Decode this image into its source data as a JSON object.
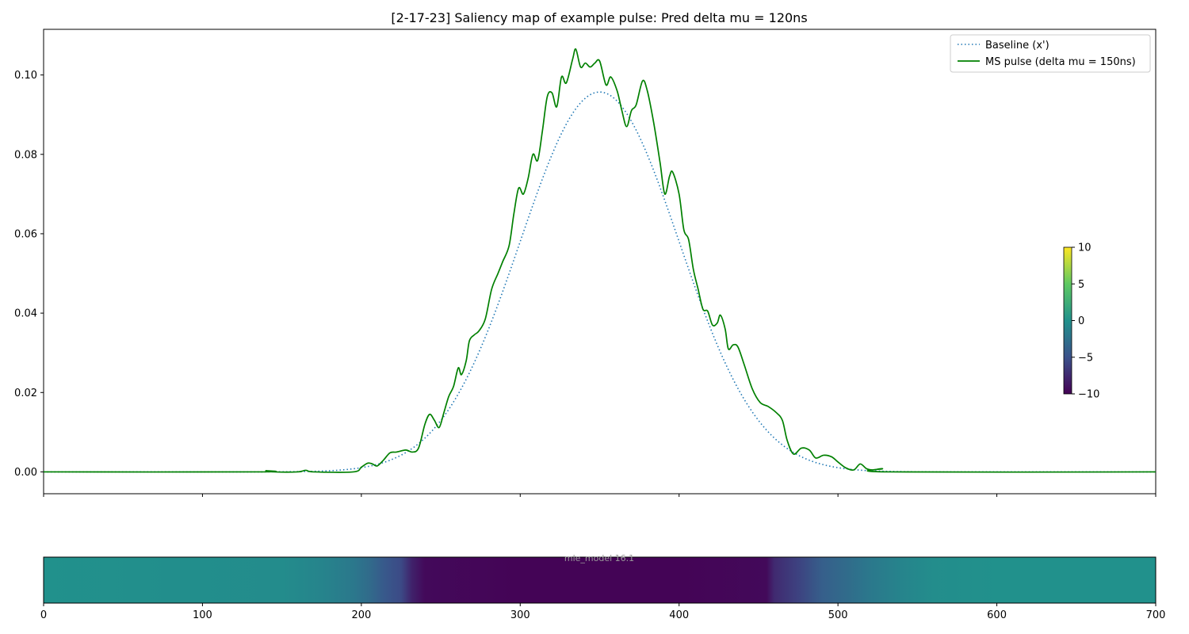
{
  "chart_data": [
    {
      "type": "line",
      "title": "[2-17-23] Saliency map of example pulse: Pred delta mu = 120ns",
      "xlim": [
        0,
        700
      ],
      "ylim": [
        -0.0055,
        0.1115
      ],
      "yticks": [
        0.0,
        0.02,
        0.04,
        0.06,
        0.08,
        0.1
      ],
      "ytick_labels": [
        "0.00",
        "0.02",
        "0.04",
        "0.06",
        "0.08",
        "0.10"
      ],
      "xticks": [
        0,
        100,
        200,
        300,
        400,
        500,
        600,
        700
      ],
      "legend_location": "top-right",
      "series": [
        {
          "name": "Baseline (x')",
          "style": "dotted",
          "color": "#1f77b4",
          "gaussian": {
            "amplitude": 0.0957,
            "center": 350,
            "sigma": 50,
            "x_range": [
              0,
              700
            ]
          }
        },
        {
          "name": "MS pulse (delta mu = 150ns)",
          "style": "solid",
          "color": "#008000",
          "points": [
            [
              0,
              0.0
            ],
            [
              135,
              0.0
            ],
            [
              140,
              0.0003
            ],
            [
              145,
              0.0
            ],
            [
              160,
              0.0
            ],
            [
              165,
              0.0004
            ],
            [
              170,
              0.0
            ],
            [
              195,
              0.0
            ],
            [
              200,
              0.0012
            ],
            [
              204,
              0.0022
            ],
            [
              207,
              0.002
            ],
            [
              210,
              0.0015
            ],
            [
              214,
              0.003
            ],
            [
              218,
              0.0048
            ],
            [
              222,
              0.005
            ],
            [
              228,
              0.0055
            ],
            [
              232,
              0.005
            ],
            [
              236,
              0.006
            ],
            [
              240,
              0.012
            ],
            [
              243,
              0.0145
            ],
            [
              246,
              0.013
            ],
            [
              249,
              0.0112
            ],
            [
              252,
              0.015
            ],
            [
              255,
              0.019
            ],
            [
              258,
              0.0215
            ],
            [
              261,
              0.0262
            ],
            [
              263,
              0.0245
            ],
            [
              266,
              0.028
            ],
            [
              268,
              0.033
            ],
            [
              271,
              0.0345
            ],
            [
              274,
              0.0355
            ],
            [
              278,
              0.0385
            ],
            [
              282,
              0.046
            ],
            [
              286,
              0.05
            ],
            [
              289,
              0.053
            ],
            [
              293,
              0.057
            ],
            [
              296,
              0.065
            ],
            [
              299,
              0.0715
            ],
            [
              302,
              0.07
            ],
            [
              305,
              0.074
            ],
            [
              308,
              0.08
            ],
            [
              311,
              0.0785
            ],
            [
              314,
              0.086
            ],
            [
              317,
              0.0945
            ],
            [
              320,
              0.0955
            ],
            [
              323,
              0.092
            ],
            [
              326,
              0.0995
            ],
            [
              329,
              0.098
            ],
            [
              333,
              0.104
            ],
            [
              335,
              0.1065
            ],
            [
              338,
              0.102
            ],
            [
              341,
              0.103
            ],
            [
              344,
              0.102
            ],
            [
              347,
              0.103
            ],
            [
              350,
              0.1035
            ],
            [
              354,
              0.0975
            ],
            [
              357,
              0.0995
            ],
            [
              361,
              0.096
            ],
            [
              364,
              0.091
            ],
            [
              367,
              0.087
            ],
            [
              370,
              0.091
            ],
            [
              373,
              0.0925
            ],
            [
              377,
              0.0985
            ],
            [
              380,
              0.096
            ],
            [
              384,
              0.088
            ],
            [
              388,
              0.078
            ],
            [
              391,
              0.07
            ],
            [
              394,
              0.0745
            ],
            [
              396,
              0.0755
            ],
            [
              400,
              0.07
            ],
            [
              403,
              0.061
            ],
            [
              406,
              0.0585
            ],
            [
              409,
              0.051
            ],
            [
              412,
              0.046
            ],
            [
              415,
              0.041
            ],
            [
              418,
              0.0405
            ],
            [
              421,
              0.037
            ],
            [
              424,
              0.0375
            ],
            [
              426,
              0.0395
            ],
            [
              429,
              0.036
            ],
            [
              431,
              0.031
            ],
            [
              434,
              0.032
            ],
            [
              437,
              0.0315
            ],
            [
              441,
              0.027
            ],
            [
              446,
              0.021
            ],
            [
              451,
              0.0175
            ],
            [
              456,
              0.0165
            ],
            [
              461,
              0.015
            ],
            [
              465,
              0.013
            ],
            [
              468,
              0.008
            ],
            [
              472,
              0.0045
            ],
            [
              477,
              0.006
            ],
            [
              482,
              0.0055
            ],
            [
              486,
              0.0035
            ],
            [
              491,
              0.0042
            ],
            [
              496,
              0.0038
            ],
            [
              500,
              0.0025
            ],
            [
              505,
              0.001
            ],
            [
              510,
              0.0005
            ],
            [
              514,
              0.002
            ],
            [
              518,
              0.0008
            ],
            [
              522,
              0.0005
            ],
            [
              528,
              0.0008
            ],
            [
              532,
              0.0
            ],
            [
              700,
              0.0
            ]
          ]
        }
      ]
    },
    {
      "type": "heatmap",
      "xlim": [
        0,
        700
      ],
      "xticks": [
        0,
        100,
        200,
        300,
        400,
        500,
        600,
        700
      ],
      "colormap": "viridis",
      "colorbar": {
        "min": -10,
        "max": 10,
        "ticks": [
          10,
          5,
          0,
          -5,
          -10
        ],
        "tick_labels": [
          "10",
          "5",
          "0",
          "−5",
          "−10"
        ]
      },
      "overlay_text": "mle_model 16.1",
      "values_by_x": [
        [
          0,
          0.0
        ],
        [
          150,
          -0.4
        ],
        [
          175,
          -1.0
        ],
        [
          195,
          -2.0
        ],
        [
          205,
          -3.0
        ],
        [
          215,
          -4.5
        ],
        [
          225,
          -5.5
        ],
        [
          232,
          -8.0
        ],
        [
          240,
          -9.5
        ],
        [
          300,
          -9.8
        ],
        [
          400,
          -9.8
        ],
        [
          455,
          -9.5
        ],
        [
          460,
          -7.5
        ],
        [
          475,
          -6.0
        ],
        [
          490,
          -4.0
        ],
        [
          505,
          -3.0
        ],
        [
          520,
          -2.0
        ],
        [
          540,
          -1.0
        ],
        [
          560,
          -0.3
        ],
        [
          600,
          0.0
        ],
        [
          700,
          0.0
        ]
      ]
    }
  ]
}
